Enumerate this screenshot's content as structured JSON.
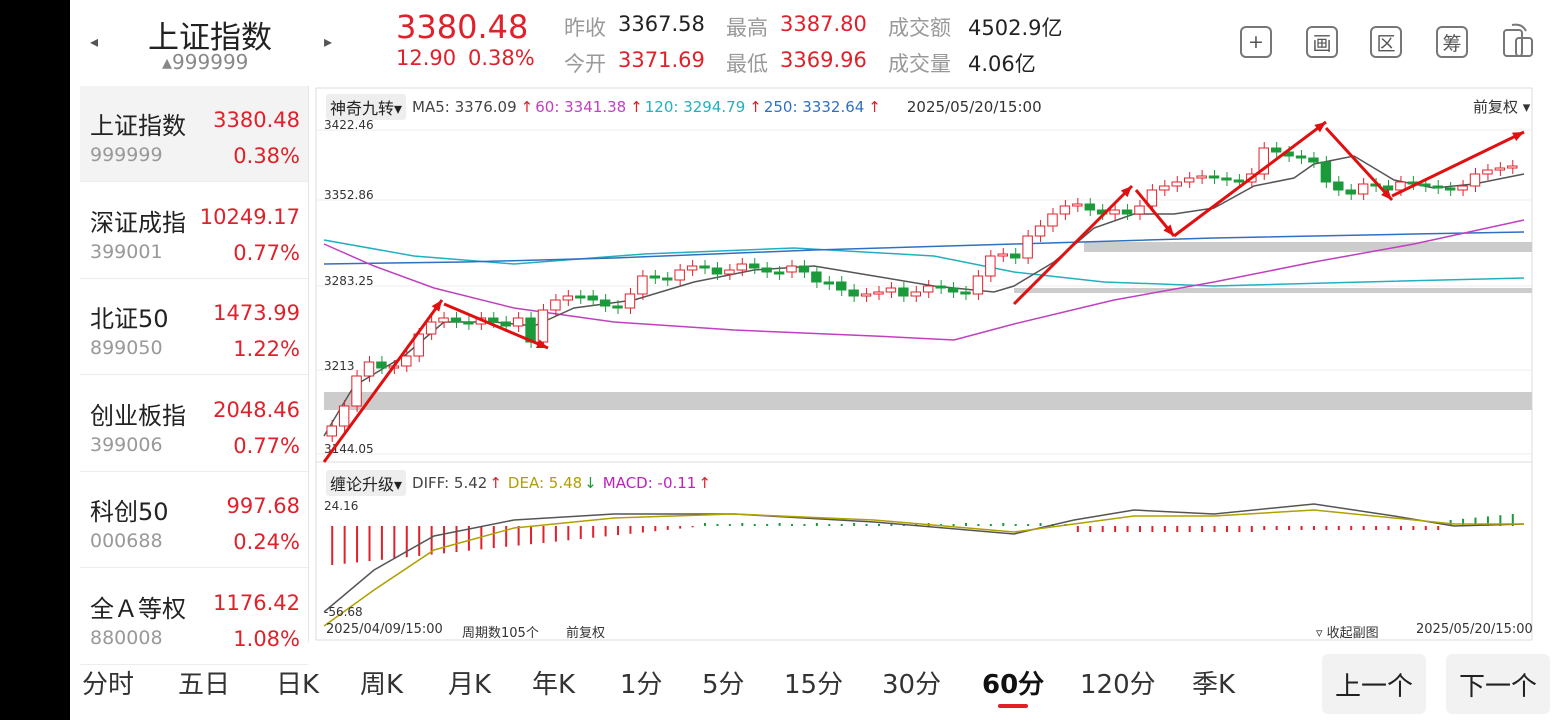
{
  "header": {
    "title": "上证指数",
    "code": "999999",
    "price": "3380.48",
    "change": "12.90",
    "change_pct": "0.38%",
    "stats": [
      {
        "label": "昨收",
        "value": "3367.58",
        "color": "#222"
      },
      {
        "label": "今开",
        "value": "3371.69",
        "color": "#e0202a"
      },
      {
        "label": "最高",
        "value": "3387.80",
        "color": "#e0202a"
      },
      {
        "label": "最低",
        "value": "3369.96",
        "color": "#e0202a"
      },
      {
        "label": "成交额",
        "value": "4502.9亿",
        "color": "#222"
      },
      {
        "label": "成交量",
        "value": "4.06亿",
        "color": "#222"
      }
    ],
    "tools": [
      "+",
      "画",
      "区",
      "筹"
    ]
  },
  "sidebar": [
    {
      "name": "上证指数",
      "price": "3380.48",
      "code": "999999",
      "pct": "0.38%"
    },
    {
      "name": "深证成指",
      "price": "10249.17",
      "code": "399001",
      "pct": "0.77%"
    },
    {
      "name": "北证50",
      "price": "1473.99",
      "code": "899050",
      "pct": "1.22%"
    },
    {
      "name": "创业板指",
      "price": "2048.46",
      "code": "399006",
      "pct": "0.77%"
    },
    {
      "name": "科创50",
      "price": "997.68",
      "code": "000688",
      "pct": "0.24%"
    },
    {
      "name": "全Ａ等权",
      "price": "1176.42",
      "code": "880008",
      "pct": "1.08%"
    }
  ],
  "chart": {
    "indicator": "神奇九转",
    "ma": [
      {
        "label": "MA5: 3376.09",
        "color": "#444"
      },
      {
        "label": "60: 3341.38",
        "color": "#c040c0"
      },
      {
        "label": "120: 3294.79",
        "color": "#20b0c0"
      },
      {
        "label": "250: 3332.64",
        "color": "#3070c0"
      }
    ],
    "datetime": "2025/05/20/15:00",
    "adjust": "前复权",
    "y_labels": {
      "top": "3422.46",
      "mid1": "3352.86",
      "mid2": "3283.25",
      "mid3": "3213",
      "bottom": "3144.05"
    },
    "sub_indicator": "缠论升级",
    "macd": [
      {
        "label": "DIFF: 5.42",
        "color": "#444",
        "arrow": "↑"
      },
      {
        "label": "DEA: 5.48",
        "color": "#b0a000",
        "arrow": "↓"
      },
      {
        "label": "MACD: -0.11",
        "color": "#c020c0",
        "arrow": "↑"
      }
    ],
    "macd_top": "24.16",
    "macd_bottom": "-56.68",
    "footer_left": "2025/04/09/15:00",
    "footer_period": "周期数105个",
    "footer_adjust": "前复权",
    "collapse": "收起副图",
    "footer_right": "2025/05/20/15:00"
  },
  "chart_data": {
    "type": "candlestick",
    "y_range": [
      3144.05,
      3422.46
    ],
    "start": "2025/04/09/15:00",
    "end": "2025/05/20/15:00",
    "periods": 105
  },
  "tabs": [
    "分时",
    "五日",
    "日K",
    "周K",
    "月K",
    "年K",
    "1分",
    "5分",
    "15分",
    "30分",
    "60分",
    "120分",
    "季K"
  ],
  "active_tab": "60分",
  "prev_label": "上一个",
  "next_label": "下一个"
}
